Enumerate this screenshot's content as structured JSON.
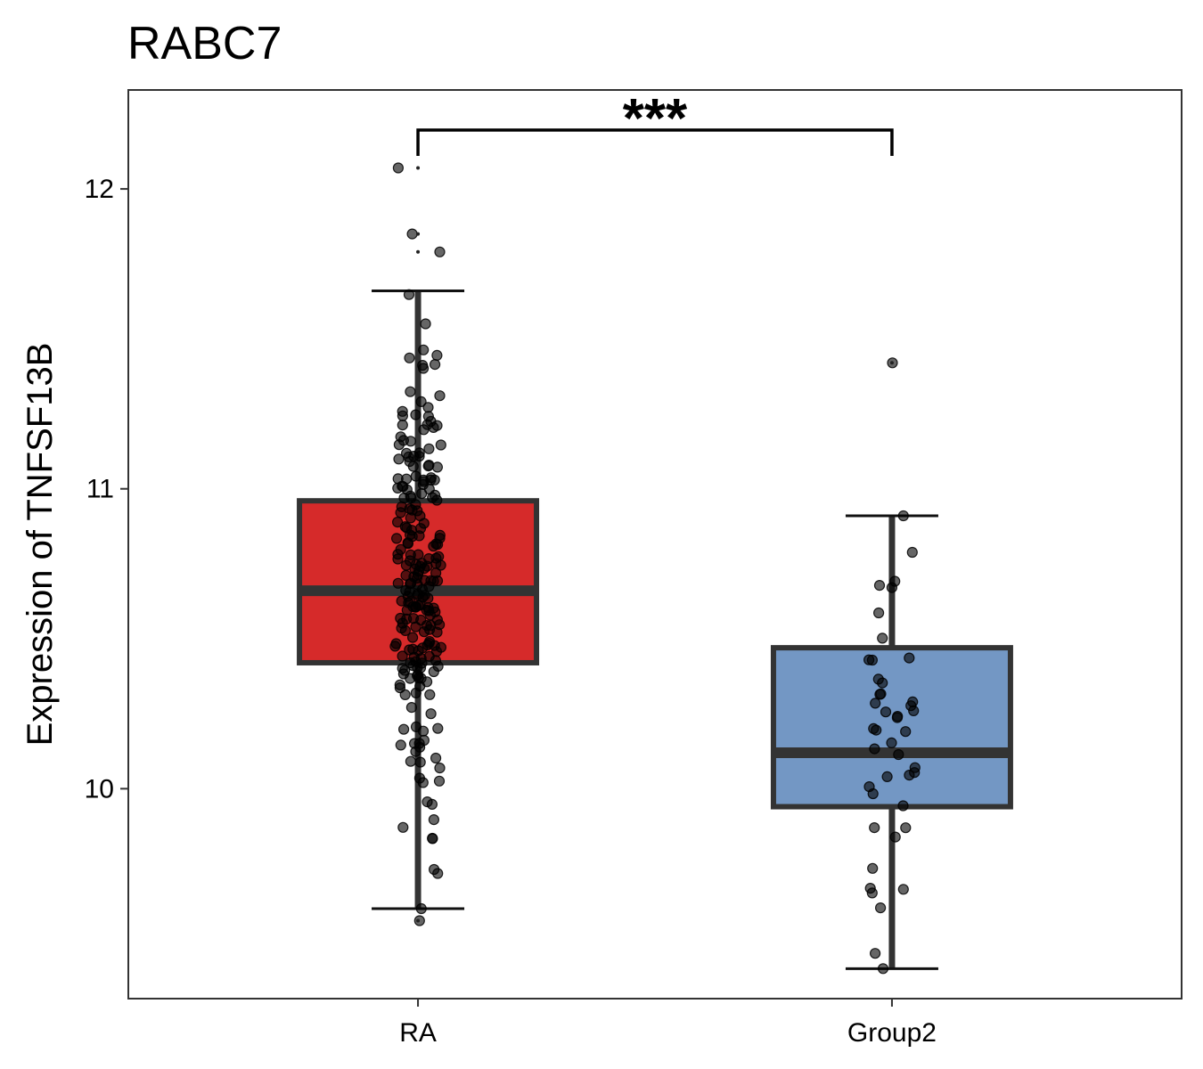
{
  "chart_data": {
    "type": "box",
    "title": "RABC7",
    "xlabel": "",
    "ylabel": "Expression of TNFSF13B",
    "ylim": [
      9.3,
      12.33
    ],
    "yticks": [
      10,
      11,
      12
    ],
    "grid": false,
    "legend": "none",
    "categories": [
      "RA",
      "Group2"
    ],
    "boxes": [
      {
        "name": "RA",
        "color": "#d62a2a",
        "whisker_low": 9.6,
        "q1": 10.42,
        "median": 10.66,
        "q3": 10.96,
        "whisker_high": 11.66
      },
      {
        "name": "Group2",
        "color": "#7397c4",
        "whisker_low": 9.4,
        "q1": 9.94,
        "median": 10.12,
        "q3": 10.47,
        "whisker_high": 10.91
      }
    ],
    "outliers": [
      {
        "group": "RA",
        "values": [
          12.07,
          11.85,
          11.79,
          9.56
        ]
      },
      {
        "group": "Group2",
        "values": [
          11.42
        ]
      }
    ],
    "points": {
      "RA": {
        "count": 230,
        "min": 9.56,
        "max": 12.07
      },
      "Group2": {
        "count": 45,
        "min": 9.4,
        "max": 11.42
      }
    },
    "significance": {
      "groups": [
        "RA",
        "Group2"
      ],
      "label": "***"
    },
    "colors": {
      "frame": "#333333",
      "box_line": "#333333",
      "point": "#000000"
    }
  }
}
